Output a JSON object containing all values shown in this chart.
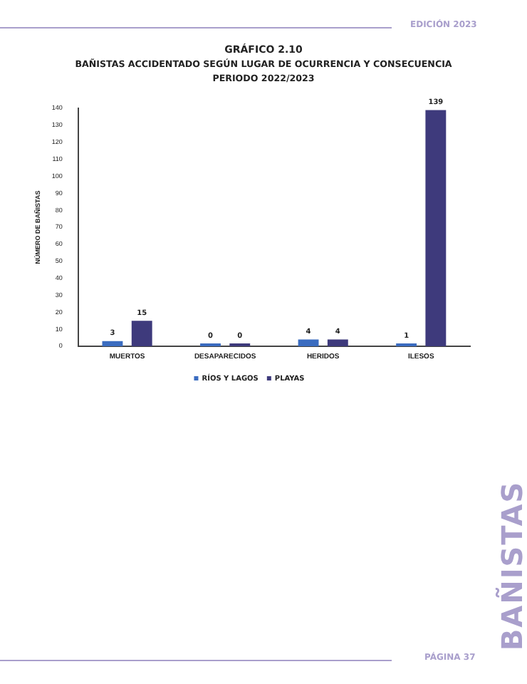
{
  "chart_data": {
    "type": "bar",
    "title": "GRÁFICO 2.10",
    "subtitle": "BAÑISTAS ACCIDENTADO SEGÚN LUGAR DE OCURRENCIA Y CONSECUENCIA\nPERIODO 2022/2023",
    "ylabel": "NÚMERO DE BAÑISTAS",
    "categories": [
      "MUERTOS",
      "DESAPARECIDOS",
      "HERIDOS",
      "ILESOS"
    ],
    "series": [
      {
        "name": "RÍOS Y LAGOS",
        "color": "#3b6cc0",
        "values": [
          3,
          0,
          4,
          1
        ]
      },
      {
        "name": "PLAYAS",
        "color": "#3e3a7c",
        "values": [
          15,
          0,
          4,
          139
        ]
      }
    ],
    "ylim": [
      0,
      140
    ],
    "yticks": [
      0,
      10,
      20,
      30,
      40,
      50,
      60,
      70,
      80,
      90,
      100,
      110,
      120,
      130,
      140
    ],
    "grid": false,
    "legend": "bottom",
    "data_labels": true,
    "annotations": [
      "EDICIÓN 2023",
      "PÁGINA 37",
      "BAÑISTAS"
    ]
  }
}
